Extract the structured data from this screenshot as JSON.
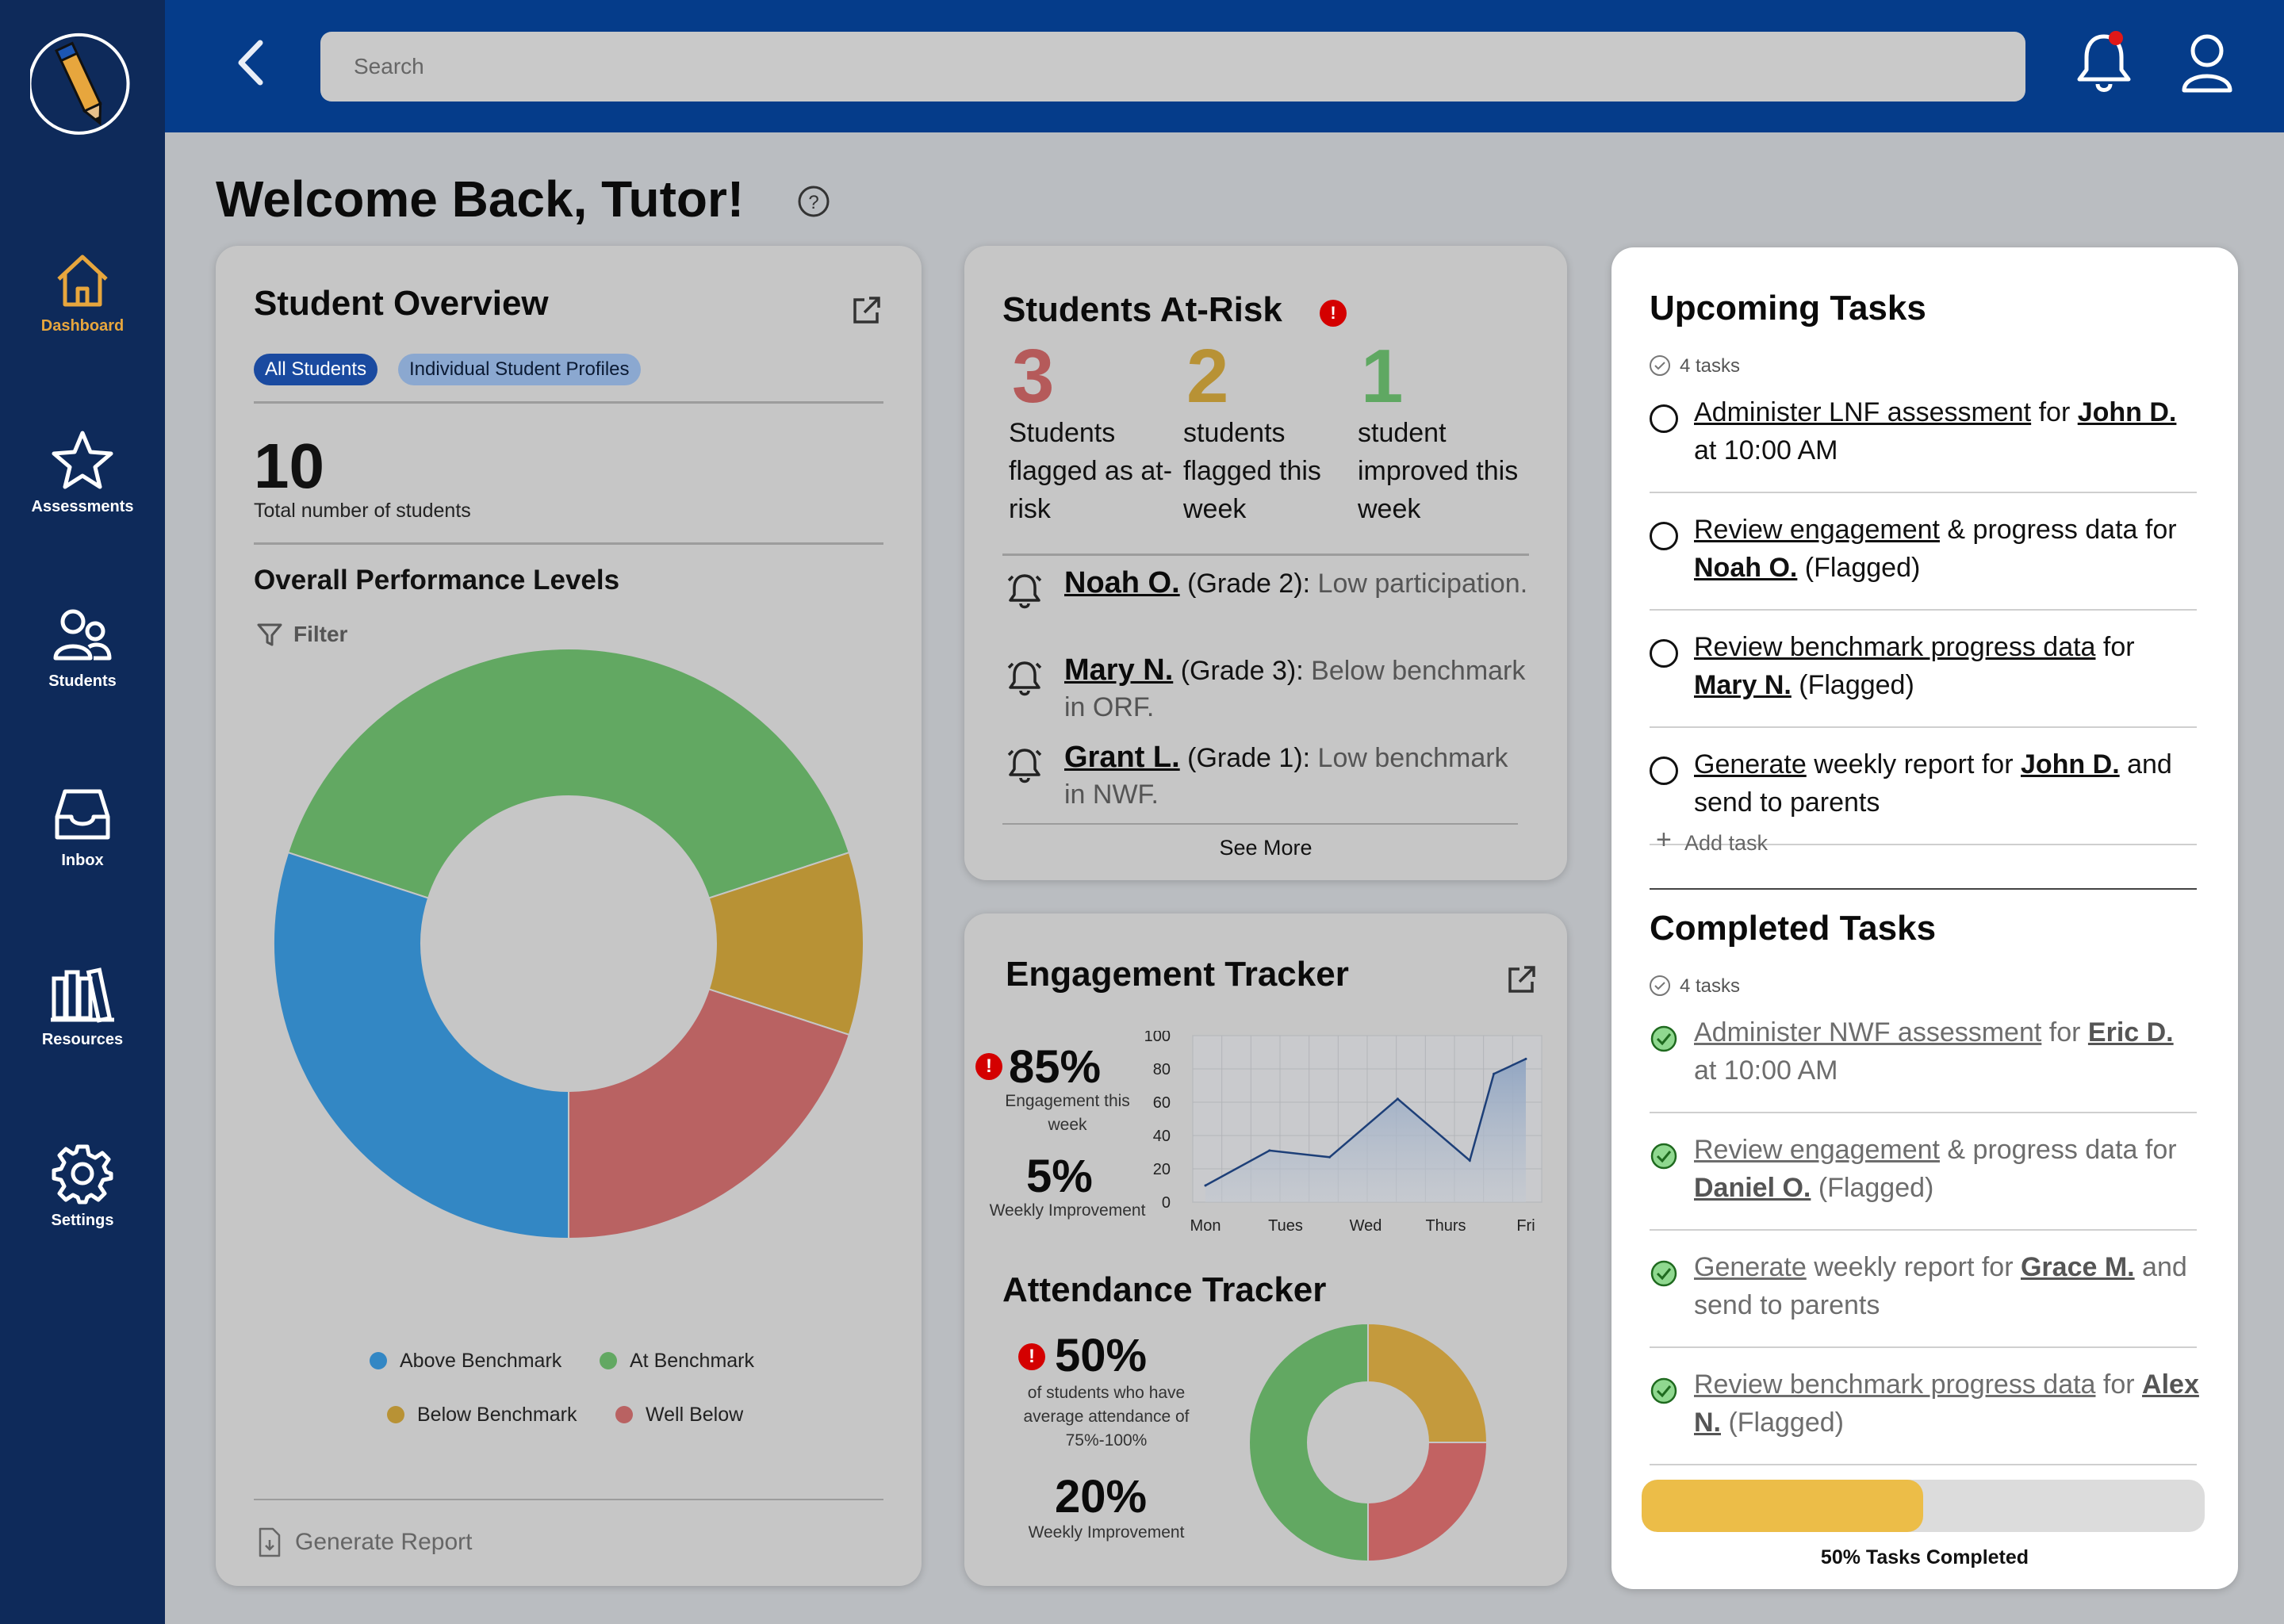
{
  "app": {
    "nav": [
      {
        "label": "Dashboard",
        "icon": "home-icon",
        "active": true
      },
      {
        "label": "Assessments",
        "icon": "star-icon",
        "active": false
      },
      {
        "label": "Students",
        "icon": "users-icon",
        "active": false
      },
      {
        "label": "Inbox",
        "icon": "inbox-icon",
        "active": false
      },
      {
        "label": "Resources",
        "icon": "books-icon",
        "active": false
      },
      {
        "label": "Settings",
        "icon": "gear-icon",
        "active": false
      }
    ],
    "search_placeholder": "Search",
    "colors": {
      "sidebar": "#0e2a5a",
      "topbar": "#053c8a",
      "accent": "#e7a63d",
      "alert": "#d40000"
    }
  },
  "page": {
    "title": "Welcome Back, Tutor!"
  },
  "overview": {
    "title": "Student Overview",
    "chips": [
      "All Students",
      "Individual Student Profiles"
    ],
    "total": "10",
    "total_label": "Total number of students",
    "perf_title": "Overall Performance Levels",
    "filter_label": "Filter",
    "generate_report": "Generate Report"
  },
  "atrisk": {
    "title": "Students At-Risk",
    "stats": [
      {
        "value": "3",
        "text": "Students flagged as at-risk",
        "color": "#b55a5a"
      },
      {
        "value": "2",
        "text": "students flagged this week",
        "color": "#b89235"
      },
      {
        "value": "1",
        "text": "student improved this week",
        "color": "#5fa862"
      }
    ],
    "alerts": [
      {
        "name": "Noah O.",
        "grade": "(Grade 2):",
        "note": "Low participation."
      },
      {
        "name": "Mary N.",
        "grade": "(Grade 3):",
        "note": "Below benchmark in ORF."
      },
      {
        "name": "Grant L.",
        "grade": "(Grade 1):",
        "note": "Low benchmark in NWF."
      }
    ],
    "see_more": "See More"
  },
  "engagement": {
    "title": "Engagement Tracker",
    "pct": "85%",
    "pct_label": "Engagement this week",
    "improve": "5%",
    "improve_label": "Weekly Improvement"
  },
  "attendance": {
    "title": "Attendance Tracker",
    "pct": "50%",
    "pct_label": "of students who have average attendance of 75%-100%",
    "improve": "20%",
    "improve_label": "Weekly Improvement"
  },
  "tasks": {
    "upcoming_title": "Upcoming Tasks",
    "upcoming_count": "4 tasks",
    "upcoming": [
      {
        "parts": [
          [
            "u",
            "Administer LNF assessment"
          ],
          [
            "t",
            " for "
          ],
          [
            "b",
            "John D."
          ],
          [
            "t",
            " at 10:00 AM"
          ]
        ]
      },
      {
        "parts": [
          [
            "u",
            "Review engagement"
          ],
          [
            "t",
            " & progress data for "
          ],
          [
            "b",
            "Noah O."
          ],
          [
            "t",
            " (Flagged)"
          ]
        ]
      },
      {
        "parts": [
          [
            "u",
            "Review benchmark progress data"
          ],
          [
            "t",
            " for "
          ],
          [
            "b",
            "Mary N."
          ],
          [
            "t",
            " (Flagged)"
          ]
        ]
      },
      {
        "parts": [
          [
            "u",
            "Generate"
          ],
          [
            "t",
            " weekly report for "
          ],
          [
            "b",
            "John D."
          ],
          [
            "t",
            " and send to parents"
          ]
        ]
      }
    ],
    "add_task": "Add task",
    "completed_title": "Completed Tasks",
    "completed_count": "4 tasks",
    "completed": [
      {
        "parts": [
          [
            "u",
            "Administer NWF assessment"
          ],
          [
            "t",
            " for "
          ],
          [
            "b",
            "Eric D."
          ],
          [
            "t",
            " at 10:00 AM"
          ]
        ]
      },
      {
        "parts": [
          [
            "u",
            "Review engagement"
          ],
          [
            "t",
            " & progress data for "
          ],
          [
            "b",
            "Daniel O."
          ],
          [
            "t",
            " (Flagged)"
          ]
        ]
      },
      {
        "parts": [
          [
            "u",
            "Generate"
          ],
          [
            "t",
            " weekly report for "
          ],
          [
            "b",
            "Grace M."
          ],
          [
            "t",
            " and send to parents"
          ]
        ]
      },
      {
        "parts": [
          [
            "u",
            "Review benchmark progress data"
          ],
          [
            "t",
            " for "
          ],
          [
            "b",
            "Alex N."
          ],
          [
            "t",
            " (Flagged)"
          ]
        ]
      }
    ],
    "progress": 0.5,
    "progress_label": "50% Tasks Completed"
  },
  "chart_data": [
    {
      "type": "pie",
      "title": "Overall Performance Levels",
      "donut": true,
      "series": [
        {
          "name": "At Benchmark",
          "value": 40,
          "color": "#62a862"
        },
        {
          "name": "Below Benchmark",
          "value": 10,
          "color": "#b89235"
        },
        {
          "name": "Well Below",
          "value": 20,
          "color": "#b96262"
        },
        {
          "name": "Above Benchmark",
          "value": 30,
          "color": "#3387c4"
        }
      ],
      "legend_order": [
        "Above Benchmark",
        "At Benchmark",
        "Below Benchmark",
        "Well Below"
      ],
      "legend": "bottom"
    },
    {
      "type": "area",
      "title": "",
      "categories": [
        "Mon",
        "Tues",
        "Wed",
        "Thurs",
        "Fri"
      ],
      "x": [
        0,
        1,
        2,
        3,
        4
      ],
      "series": [
        {
          "x": [
            0,
            0.8,
            1.55,
            2.4,
            3.3,
            3.6,
            4
          ],
          "values": [
            10,
            31,
            27,
            62,
            25,
            77,
            86
          ]
        }
      ],
      "yticks": [
        0,
        20,
        40,
        60,
        80,
        100
      ],
      "ylim": [
        0,
        100
      ],
      "grid": true,
      "color": "#1d3f78"
    },
    {
      "type": "pie",
      "title": "",
      "donut": true,
      "series": [
        {
          "value": 25,
          "color": "#c49a3d"
        },
        {
          "value": 25,
          "color": "#c26262"
        },
        {
          "value": 50,
          "color": "#62a862"
        }
      ]
    }
  ]
}
